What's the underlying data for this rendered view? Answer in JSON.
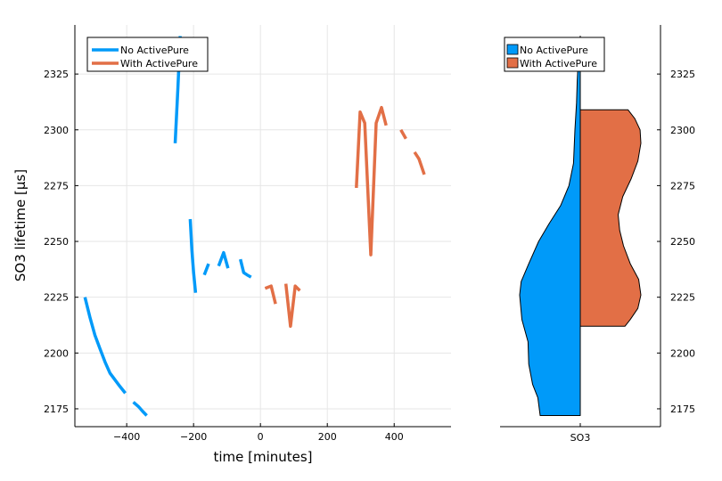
{
  "colors": {
    "no_activepure": "#009af9",
    "with_activepure": "#e26f46"
  },
  "chart_data": [
    {
      "type": "line",
      "xlabel": "time [minutes]",
      "ylabel": "SO3 lifetime [μs]",
      "xlim": [
        -555,
        570
      ],
      "ylim": [
        2167,
        2347
      ],
      "xticks": [
        -400,
        -200,
        0,
        200,
        400
      ],
      "yticks": [
        2175,
        2200,
        2225,
        2250,
        2275,
        2300,
        2325
      ],
      "grid": true,
      "legend_position": "top-left",
      "series": [
        {
          "name": "No ActivePure",
          "segments": [
            [
              [
                -525,
                2225
              ],
              [
                -510,
                2216
              ],
              [
                -495,
                2208
              ],
              [
                -480,
                2202
              ],
              [
                -465,
                2196
              ],
              [
                -450,
                2191
              ],
              [
                -435,
                2188
              ],
              [
                -420,
                2185
              ],
              [
                -404,
                2182
              ]
            ],
            [
              [
                -380,
                2178
              ],
              [
                -365,
                2176
              ],
              [
                -353,
                2174
              ],
              [
                -340,
                2172
              ]
            ],
            [
              [
                -255,
                2294
              ],
              [
                -247,
                2318
              ],
              [
                -240,
                2342
              ]
            ],
            [
              [
                -210,
                2260
              ],
              [
                -205,
                2246
              ],
              [
                -200,
                2236
              ],
              [
                -194,
                2227
              ]
            ],
            [
              [
                -168,
                2235
              ],
              [
                -155,
                2240
              ]
            ],
            [
              [
                -125,
                2239
              ],
              [
                -110,
                2245
              ],
              [
                -97,
                2238
              ]
            ],
            [
              [
                -60,
                2242
              ],
              [
                -50,
                2236
              ],
              [
                -40,
                2235
              ],
              [
                -28,
                2234
              ]
            ]
          ]
        },
        {
          "name": "With ActivePure",
          "segments": [
            [
              [
                14,
                2229
              ],
              [
                32,
                2230
              ],
              [
                45,
                2222
              ]
            ],
            [
              [
                76,
                2231
              ],
              [
                90,
                2212
              ],
              [
                104,
                2230
              ],
              [
                118,
                2228
              ]
            ],
            [
              [
                287,
                2274
              ],
              [
                298,
                2308
              ],
              [
                312,
                2303
              ],
              [
                330,
                2244
              ],
              [
                346,
                2303
              ],
              [
                362,
                2310
              ],
              [
                376,
                2302
              ]
            ],
            [
              [
                420,
                2300
              ],
              [
                435,
                2296
              ]
            ],
            [
              [
                461,
                2290
              ],
              [
                474,
                2287
              ],
              [
                490,
                2280
              ]
            ]
          ]
        }
      ]
    },
    {
      "type": "violin",
      "categories": [
        "SO3"
      ],
      "ylim": [
        2167,
        2347
      ],
      "yticks": [
        2175,
        2200,
        2225,
        2250,
        2275,
        2300,
        2325
      ],
      "grid": false,
      "legend_position": "top-left",
      "series": [
        {
          "name": "No ActivePure",
          "side": "left",
          "range": [
            2172,
            2342
          ],
          "density": [
            [
              2172,
              0.53
            ],
            [
              2180,
              0.56
            ],
            [
              2186,
              0.63
            ],
            [
              2195,
              0.68
            ],
            [
              2205,
              0.69
            ],
            [
              2215,
              0.77
            ],
            [
              2226,
              0.8
            ],
            [
              2232,
              0.78
            ],
            [
              2240,
              0.68
            ],
            [
              2250,
              0.55
            ],
            [
              2258,
              0.41
            ],
            [
              2266,
              0.26
            ],
            [
              2275,
              0.15
            ],
            [
              2285,
              0.09
            ],
            [
              2300,
              0.07
            ],
            [
              2312,
              0.05
            ],
            [
              2322,
              0.04
            ],
            [
              2335,
              0.02
            ],
            [
              2342,
              0.0
            ]
          ]
        },
        {
          "name": "With ActivePure",
          "side": "right",
          "range": [
            2212,
            2309
          ],
          "density": [
            [
              2212,
              0.59
            ],
            [
              2215,
              0.66
            ],
            [
              2220,
              0.76
            ],
            [
              2226,
              0.8
            ],
            [
              2233,
              0.77
            ],
            [
              2240,
              0.66
            ],
            [
              2248,
              0.57
            ],
            [
              2255,
              0.52
            ],
            [
              2262,
              0.5
            ],
            [
              2270,
              0.56
            ],
            [
              2278,
              0.67
            ],
            [
              2286,
              0.76
            ],
            [
              2294,
              0.8
            ],
            [
              2300,
              0.79
            ],
            [
              2305,
              0.72
            ],
            [
              2309,
              0.63
            ]
          ]
        }
      ]
    }
  ]
}
